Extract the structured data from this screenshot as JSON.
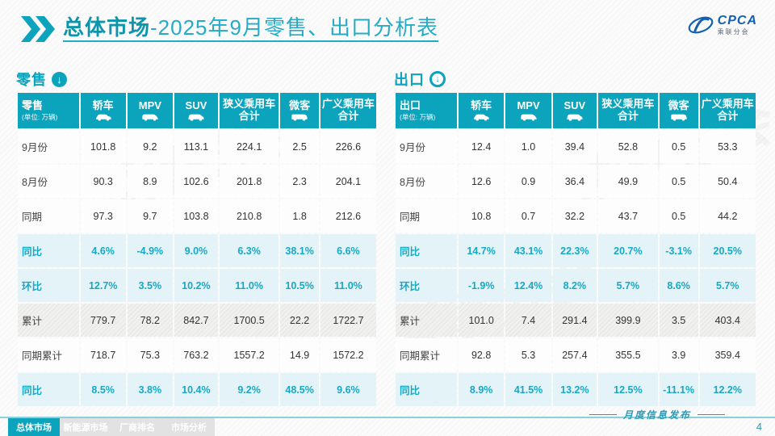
{
  "page": {
    "title_bold": "总体市场",
    "title_rest": "-2025年9月零售、出口分析表",
    "publication_label": "月度信息发布",
    "page_number": "4"
  },
  "logo": {
    "text": "CPCA",
    "subtext": "乘联分会",
    "icon": "cpca-swirl-icon"
  },
  "colors": {
    "accent": "#0ca3bc",
    "accent_text": "#18a8c5",
    "highlight_row_bg": "#e3f3f8",
    "footer_line": "#8fcfdc",
    "logo_blue": "#1360b0"
  },
  "columns": [
    {
      "label": "轿车",
      "icon": "sedan-icon"
    },
    {
      "label": "MPV",
      "icon": "mpv-icon"
    },
    {
      "label": "SUV",
      "icon": "suv-icon"
    },
    {
      "label": "狭义乘用车 合计",
      "icon": null
    },
    {
      "label": "微客",
      "icon": "microvan-icon"
    },
    {
      "label": "广义乘用车 合计",
      "icon": null
    }
  ],
  "tables": [
    {
      "name": "零售",
      "unit": "(单位: 万辆)",
      "arrow_icon": "circle-down-arrow-icon",
      "arrow_style": "filled",
      "rows": [
        {
          "label": "9月份",
          "style": "plain",
          "values": [
            "101.8",
            "9.2",
            "113.1",
            "224.1",
            "2.5",
            "226.6"
          ]
        },
        {
          "label": "8月份",
          "style": "plain",
          "values": [
            "90.3",
            "8.9",
            "102.6",
            "201.8",
            "2.3",
            "204.1"
          ]
        },
        {
          "label": "同期",
          "style": "plain",
          "values": [
            "97.3",
            "9.7",
            "103.8",
            "210.8",
            "1.8",
            "212.6"
          ]
        },
        {
          "label": "同比",
          "style": "percent",
          "values": [
            "4.6%",
            "-4.9%",
            "9.0%",
            "6.3%",
            "38.1%",
            "6.6%"
          ]
        },
        {
          "label": "环比",
          "style": "percent",
          "values": [
            "12.7%",
            "3.5%",
            "10.2%",
            "11.0%",
            "10.5%",
            "11.0%"
          ]
        },
        {
          "label": "累计",
          "style": "cumulative",
          "values": [
            "779.7",
            "78.2",
            "842.7",
            "1700.5",
            "22.2",
            "1722.7"
          ]
        },
        {
          "label": "同期累计",
          "style": "plain",
          "values": [
            "718.7",
            "75.3",
            "763.2",
            "1557.2",
            "14.9",
            "1572.2"
          ]
        },
        {
          "label": "同比",
          "style": "percent",
          "values": [
            "8.5%",
            "3.8%",
            "10.4%",
            "9.2%",
            "48.5%",
            "9.6%"
          ]
        }
      ]
    },
    {
      "name": "出口",
      "unit": "(单位: 万辆)",
      "arrow_icon": "circle-down-arrow-icon",
      "arrow_style": "ring",
      "rows": [
        {
          "label": "9月份",
          "style": "plain",
          "values": [
            "12.4",
            "1.0",
            "39.4",
            "52.8",
            "0.5",
            "53.3"
          ]
        },
        {
          "label": "8月份",
          "style": "plain",
          "values": [
            "12.6",
            "0.9",
            "36.4",
            "49.9",
            "0.5",
            "50.4"
          ]
        },
        {
          "label": "同期",
          "style": "plain",
          "values": [
            "10.8",
            "0.7",
            "32.2",
            "43.7",
            "0.5",
            "44.2"
          ]
        },
        {
          "label": "同比",
          "style": "percent",
          "values": [
            "14.7%",
            "43.1%",
            "22.3%",
            "20.7%",
            "-3.1%",
            "20.5%"
          ]
        },
        {
          "label": "环比",
          "style": "percent",
          "values": [
            "-1.9%",
            "12.4%",
            "8.2%",
            "5.7%",
            "8.6%",
            "5.7%"
          ]
        },
        {
          "label": "累计",
          "style": "cumulative",
          "values": [
            "101.0",
            "7.4",
            "291.4",
            "399.9",
            "3.5",
            "403.4"
          ]
        },
        {
          "label": "同期累计",
          "style": "plain",
          "values": [
            "92.8",
            "5.3",
            "257.4",
            "355.5",
            "3.9",
            "359.4"
          ]
        },
        {
          "label": "同比",
          "style": "percent",
          "values": [
            "8.9%",
            "41.5%",
            "13.2%",
            "12.5%",
            "-11.1%",
            "12.2%"
          ]
        }
      ]
    }
  ],
  "footer_tabs": [
    {
      "label": "总体市场",
      "active": true
    },
    {
      "label": "新能源市场",
      "active": false
    },
    {
      "label": "厂商排名",
      "active": false
    },
    {
      "label": "市场分析",
      "active": false
    }
  ]
}
